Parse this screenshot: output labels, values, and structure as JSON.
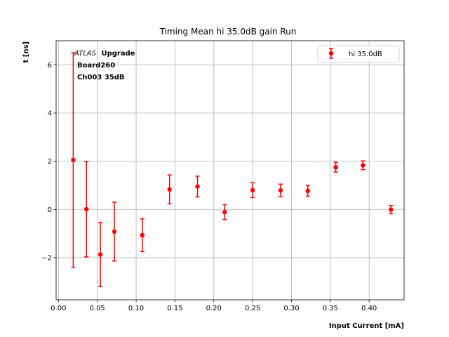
{
  "chart_data": {
    "type": "scatter",
    "title": "Timing Mean hi 35.0dB gain Run",
    "xlabel": "Input Current [mA]",
    "ylabel": "t [ns]",
    "xlim": [
      -0.003,
      0.445
    ],
    "ylim": [
      -3.75,
      7.0
    ],
    "x_ticks": [
      0.0,
      0.05,
      0.1,
      0.15,
      0.2,
      0.25,
      0.3,
      0.35,
      0.4
    ],
    "x_tick_labels": [
      "0.00",
      "0.05",
      "0.10",
      "0.15",
      "0.20",
      "0.25",
      "0.30",
      "0.35",
      "0.40"
    ],
    "y_ticks": [
      -2,
      0,
      2,
      4,
      6
    ],
    "y_tick_labels": [
      "−2",
      "0",
      "2",
      "4",
      "6"
    ],
    "grid": true,
    "legend_position": "top-right",
    "annotation": {
      "italic": "ATLAS",
      "bold": "Upgrade",
      "line2": "Board260",
      "line3": "Ch003 35dB"
    },
    "series": [
      {
        "name": "hi 35.0dB",
        "color": "#ff0000",
        "marker": "circle",
        "points": [
          {
            "x": 0.019,
            "y": 2.05,
            "err": 4.45
          },
          {
            "x": 0.036,
            "y": 0.01,
            "err": 1.98
          },
          {
            "x": 0.054,
            "y": -1.87,
            "err": 1.33
          },
          {
            "x": 0.072,
            "y": -0.92,
            "err": 1.22
          },
          {
            "x": 0.108,
            "y": -1.07,
            "err": 0.68
          },
          {
            "x": 0.143,
            "y": 0.83,
            "err": 0.6
          },
          {
            "x": 0.179,
            "y": 0.95,
            "err": 0.43
          },
          {
            "x": 0.214,
            "y": -0.11,
            "err": 0.31
          },
          {
            "x": 0.25,
            "y": 0.8,
            "err": 0.31
          },
          {
            "x": 0.286,
            "y": 0.79,
            "err": 0.26
          },
          {
            "x": 0.321,
            "y": 0.77,
            "err": 0.22
          },
          {
            "x": 0.357,
            "y": 1.75,
            "err": 0.2
          },
          {
            "x": 0.392,
            "y": 1.83,
            "err": 0.18
          },
          {
            "x": 0.428,
            "y": -0.01,
            "err": 0.17
          }
        ]
      }
    ]
  }
}
